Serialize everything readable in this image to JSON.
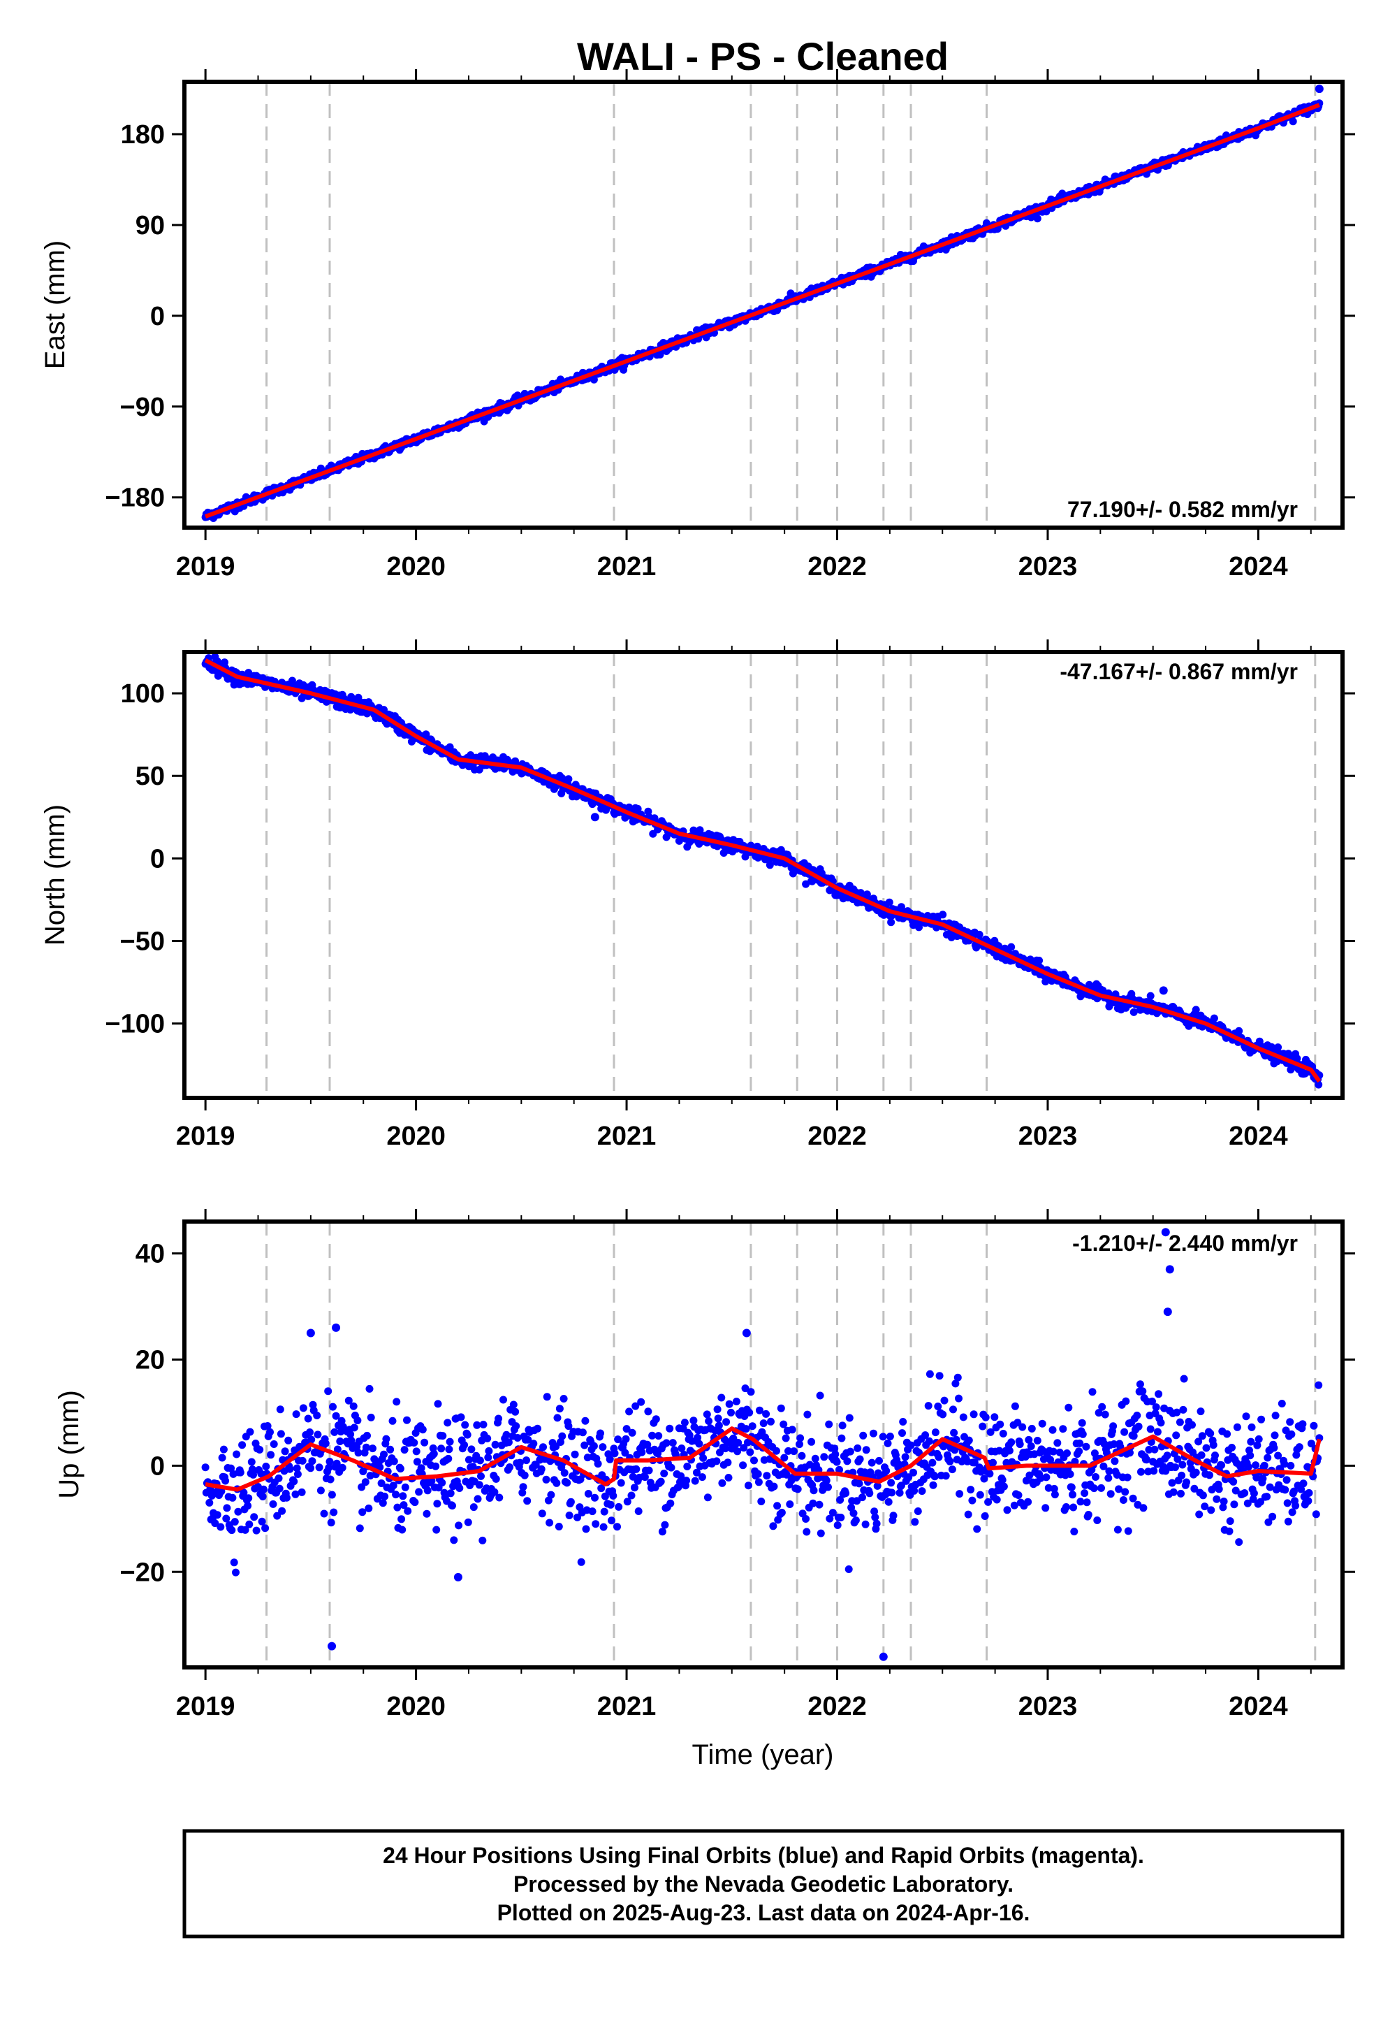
{
  "chart_data": {
    "title": "WALI  - PS - Cleaned",
    "type": "scatter",
    "x_start": 2019.0,
    "x_end": 2024.29,
    "xlim": [
      2018.9,
      2024.4
    ],
    "x_ticks": [
      2019,
      2020,
      2021,
      2022,
      2023,
      2024
    ],
    "x_tick_labels": [
      "2019",
      "2020",
      "2021",
      "2022",
      "2023",
      "2024"
    ],
    "xlabel": "Time (year)",
    "vertical_dashed_lines": [
      2019.29,
      2019.59,
      2020.94,
      2021.59,
      2021.81,
      2022.0,
      2022.22,
      2022.35,
      2022.71,
      2024.27
    ],
    "series_colors": {
      "points": "#0000ff",
      "fit": "#ff0000",
      "dashed": "#c0c0c0"
    },
    "panels": [
      {
        "ylabel": "East (mm)",
        "ylim": [
          -210,
          232
        ],
        "y_ticks": [
          -180,
          -90,
          0,
          90,
          180
        ],
        "y_tick_labels": [
          "−180",
          "−90",
          "0",
          "90",
          "180"
        ],
        "rate_text": "77.190+/- 0.582 mm/yr",
        "rate_position": "bottom-right",
        "fit_points": [
          [
            2019.0,
            -199
          ],
          [
            2020.0,
            -122
          ],
          [
            2021.0,
            -45
          ],
          [
            2022.0,
            32
          ],
          [
            2023.0,
            109
          ],
          [
            2024.0,
            186
          ],
          [
            2024.29,
            209
          ]
        ],
        "outliers": [
          [
            2024.29,
            225
          ]
        ]
      },
      {
        "ylabel": "North (mm)",
        "ylim": [
          -145,
          125
        ],
        "y_ticks": [
          -100,
          -50,
          0,
          50,
          100
        ],
        "y_tick_labels": [
          "−100",
          "−50",
          "0",
          "50",
          "100"
        ],
        "rate_text": "-47.167+/- 0.867 mm/yr",
        "rate_position": "top-right",
        "fit_points": [
          [
            2019.0,
            120
          ],
          [
            2019.15,
            110
          ],
          [
            2019.5,
            100
          ],
          [
            2019.8,
            90
          ],
          [
            2020.0,
            74
          ],
          [
            2020.2,
            60
          ],
          [
            2020.5,
            55
          ],
          [
            2020.75,
            42
          ],
          [
            2021.0,
            28
          ],
          [
            2021.25,
            15
          ],
          [
            2021.5,
            8
          ],
          [
            2021.75,
            0
          ],
          [
            2022.0,
            -18
          ],
          [
            2022.25,
            -32
          ],
          [
            2022.5,
            -40
          ],
          [
            2022.75,
            -55
          ],
          [
            2023.0,
            -70
          ],
          [
            2023.25,
            -83
          ],
          [
            2023.5,
            -90
          ],
          [
            2023.75,
            -100
          ],
          [
            2024.0,
            -115
          ],
          [
            2024.25,
            -128
          ],
          [
            2024.29,
            -135
          ]
        ],
        "outliers": [
          [
            2023.55,
            -80
          ],
          [
            2019.6,
            100
          ],
          [
            2020.85,
            25
          ]
        ]
      },
      {
        "ylabel": "Up (mm)",
        "ylim": [
          -38,
          46
        ],
        "y_ticks": [
          -20,
          0,
          20,
          40
        ],
        "y_tick_labels": [
          "−20",
          "0",
          "20",
          "40"
        ],
        "rate_text": "-1.210+/- 2.440 mm/yr",
        "rate_position": "top-right",
        "fit_points": [
          [
            2019.0,
            -3.5
          ],
          [
            2019.15,
            -4.5
          ],
          [
            2019.3,
            -2
          ],
          [
            2019.5,
            4
          ],
          [
            2019.7,
            1
          ],
          [
            2019.9,
            -2.5
          ],
          [
            2020.1,
            -2
          ],
          [
            2020.3,
            -1
          ],
          [
            2020.5,
            3.5
          ],
          [
            2020.7,
            1
          ],
          [
            2020.9,
            -3.5
          ],
          [
            2020.94,
            -2.5
          ],
          [
            2020.95,
            1
          ],
          [
            2021.1,
            1
          ],
          [
            2021.3,
            1.5
          ],
          [
            2021.5,
            7
          ],
          [
            2021.6,
            5
          ],
          [
            2021.8,
            -1.5
          ],
          [
            2022.0,
            -1.5
          ],
          [
            2022.2,
            -3
          ],
          [
            2022.35,
            0
          ],
          [
            2022.5,
            5
          ],
          [
            2022.7,
            1.5
          ],
          [
            2022.72,
            -0.5
          ],
          [
            2022.9,
            0
          ],
          [
            2023.2,
            0
          ],
          [
            2023.5,
            5.5
          ],
          [
            2023.7,
            1
          ],
          [
            2023.85,
            -2
          ],
          [
            2024.0,
            -1
          ],
          [
            2024.25,
            -1.5
          ],
          [
            2024.29,
            5
          ]
        ],
        "outliers": [
          [
            2019.6,
            -34
          ],
          [
            2022.22,
            -36
          ],
          [
            2023.56,
            44
          ],
          [
            2023.58,
            37
          ],
          [
            2023.57,
            29
          ],
          [
            2020.2,
            -21
          ],
          [
            2021.57,
            25
          ],
          [
            2019.62,
            26
          ],
          [
            2019.5,
            25
          ]
        ]
      }
    ]
  },
  "footer": {
    "line1": "24 Hour Positions Using Final Orbits (blue) and Rapid Orbits (magenta).",
    "line2": "Processed by the Nevada Geodetic Laboratory.",
    "line3": "Plotted on 2025-Aug-23. Last data on 2024-Apr-16."
  }
}
